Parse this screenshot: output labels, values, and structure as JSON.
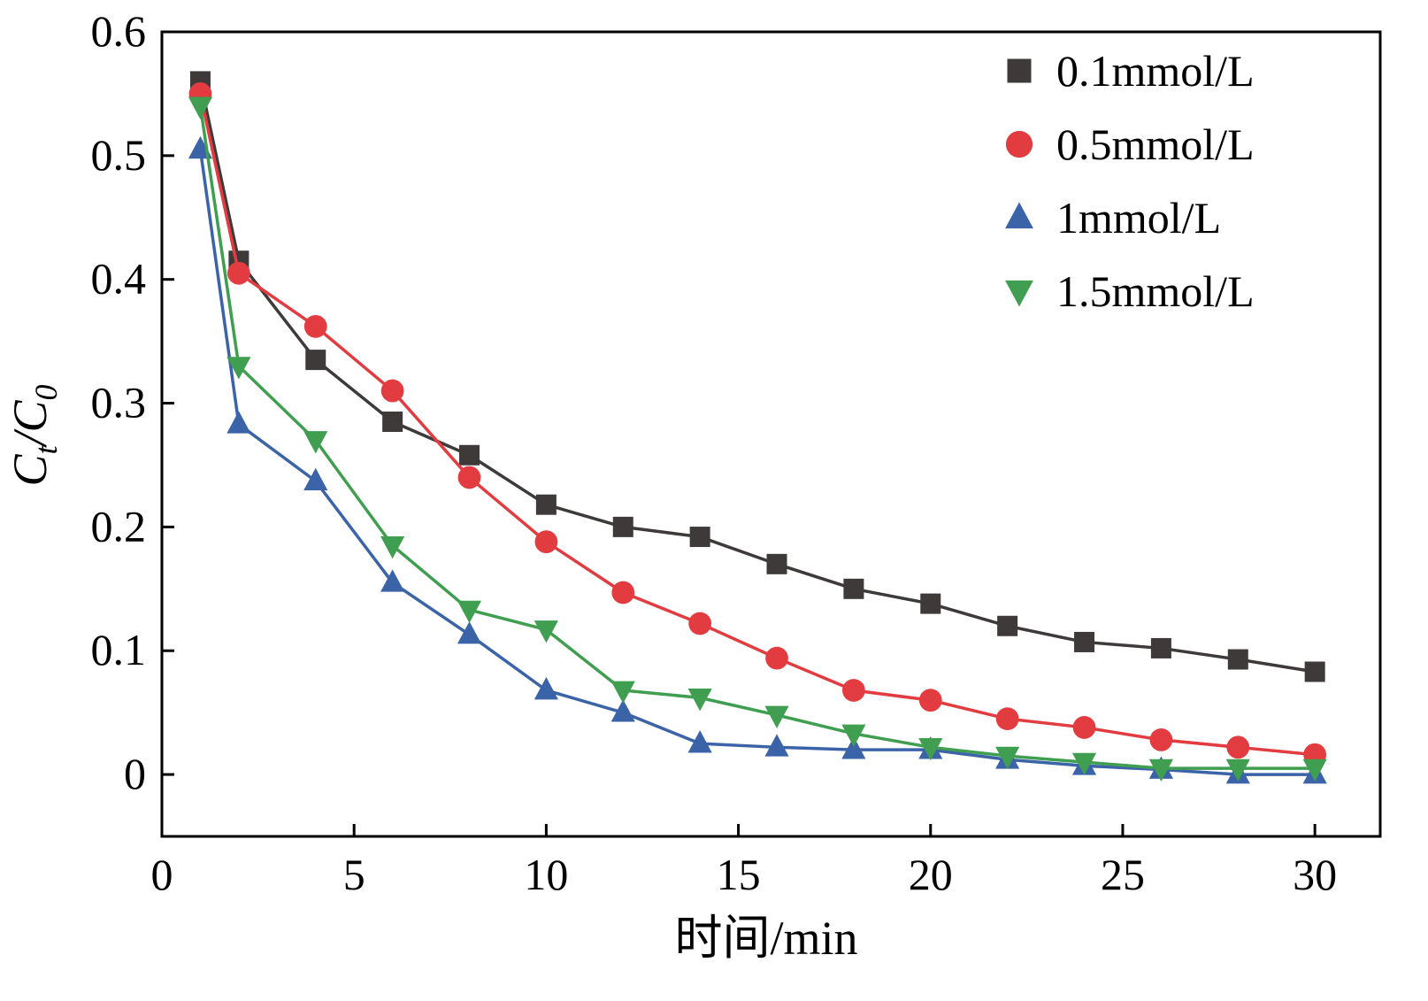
{
  "chart_data": {
    "type": "line",
    "title": "",
    "xlabel": "时间/min",
    "ylabel": "C_t/C_0",
    "xlim": [
      0,
      31.7
    ],
    "ylim": [
      -0.05,
      0.6
    ],
    "xticks": [
      0,
      5,
      10,
      15,
      20,
      25,
      30
    ],
    "yticks": [
      0,
      0.1,
      0.2,
      0.3,
      0.4,
      0.5,
      0.6
    ],
    "grid": false,
    "legend_position": "top-right",
    "x": [
      1,
      2,
      4,
      6,
      8,
      10,
      12,
      14,
      16,
      18,
      20,
      22,
      24,
      26,
      28,
      30
    ],
    "series": [
      {
        "name": "0.1mmol/L",
        "marker": "square",
        "color": "#3f3a3a",
        "values": [
          0.56,
          0.415,
          0.335,
          0.285,
          0.258,
          0.218,
          0.2,
          0.192,
          0.17,
          0.15,
          0.138,
          0.12,
          0.107,
          0.102,
          0.093,
          0.083
        ]
      },
      {
        "name": "0.5mmol/L",
        "marker": "circle",
        "color": "#e23b40",
        "values": [
          0.55,
          0.405,
          0.362,
          0.31,
          0.24,
          0.188,
          0.147,
          0.122,
          0.094,
          0.068,
          0.06,
          0.045,
          0.038,
          0.028,
          0.022,
          0.016
        ]
      },
      {
        "name": "1mmol/L",
        "marker": "triangle-up",
        "color": "#3b63a8",
        "values": [
          0.505,
          0.283,
          0.237,
          0.155,
          0.113,
          0.068,
          0.05,
          0.025,
          0.022,
          0.02,
          0.02,
          0.012,
          0.007,
          0.004,
          0.0,
          0.0
        ]
      },
      {
        "name": "1.5mmol/L",
        "marker": "triangle-down",
        "color": "#3f9e4f",
        "values": [
          0.54,
          0.33,
          0.27,
          0.185,
          0.133,
          0.117,
          0.068,
          0.062,
          0.048,
          0.033,
          0.022,
          0.015,
          0.01,
          0.005,
          0.005,
          0.005
        ]
      }
    ]
  }
}
